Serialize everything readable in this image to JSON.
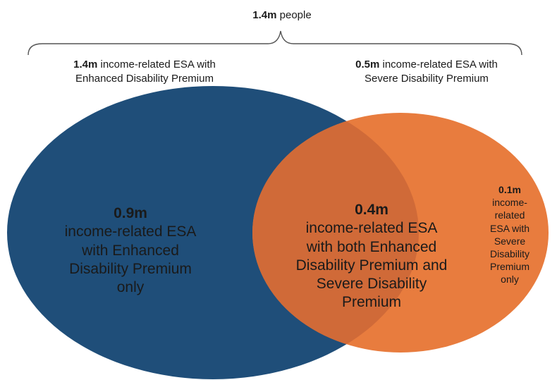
{
  "header": {
    "total_value": "1.4m",
    "total_text": " people"
  },
  "sets": {
    "left": {
      "value": "1.4m",
      "text_line1": " income-related ESA with",
      "text_line2": "Enhanced Disability Premium"
    },
    "right": {
      "value": "0.5m",
      "text_line1": " income-related ESA with",
      "text_line2": "Severe Disability Premium"
    }
  },
  "regions": {
    "left_only": {
      "value": "0.9m",
      "lines": [
        "income-related ESA",
        "with Enhanced",
        "Disability Premium",
        "only"
      ]
    },
    "overlap": {
      "value": "0.4m",
      "lines": [
        "income-related ESA",
        "with both Enhanced",
        "Disability Premium and",
        "Severe Disability",
        "Premium"
      ]
    },
    "right_only": {
      "value": "0.1m",
      "lines": [
        "income-",
        "related",
        "ESA with",
        "Severe",
        "Disability",
        "Premium",
        "only"
      ]
    }
  },
  "colors": {
    "left_set": "#1f4e79",
    "right_set": "#e87c3e",
    "overlap": "#d06a38",
    "text": "#1a1a1a",
    "brace": "#555555"
  }
}
